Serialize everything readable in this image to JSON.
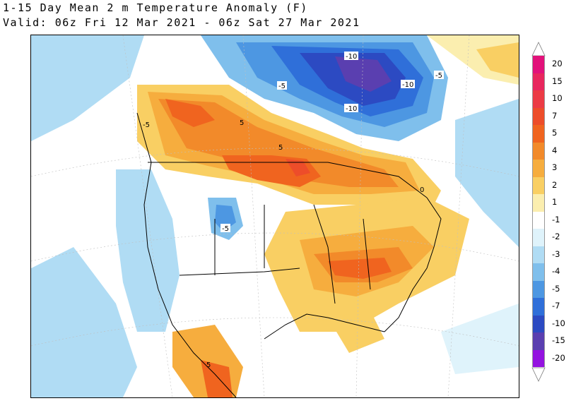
{
  "title": {
    "line1": "1-15 Day Mean 2 m Temperature Anomaly (F)",
    "line2": "Valid: 06z Fri 12 Mar 2021 - 06z Sat 27 Mar 2021"
  },
  "map": {
    "region": "North America",
    "variable": "2 m temperature anomaly",
    "units": "F",
    "contour_labels": [
      "-10",
      "-10",
      "-10",
      "-5",
      "-5",
      "5",
      "5",
      "-5",
      "-5",
      "5",
      "0"
    ]
  },
  "colorbar": {
    "levels": [
      {
        "label": "20",
        "color": "#e2117a"
      },
      {
        "label": "15",
        "color": "#e8265e"
      },
      {
        "label": "10",
        "color": "#ec3b45"
      },
      {
        "label": "7",
        "color": "#ed4d2a"
      },
      {
        "label": "5",
        "color": "#f0641f"
      },
      {
        "label": "4",
        "color": "#f28a2a"
      },
      {
        "label": "3",
        "color": "#f6ad3e"
      },
      {
        "label": "2",
        "color": "#f9cf63"
      },
      {
        "label": "1",
        "color": "#fbeeaf"
      },
      {
        "label": "-1",
        "color": "#ffffff"
      },
      {
        "label": "-2",
        "color": "#dff3fb"
      },
      {
        "label": "-3",
        "color": "#b0dcf4"
      },
      {
        "label": "-4",
        "color": "#7fbfec"
      },
      {
        "label": "-5",
        "color": "#4d97e2"
      },
      {
        "label": "-7",
        "color": "#2f6fd9"
      },
      {
        "label": "-10",
        "color": "#2c4ac2"
      },
      {
        "label": "-15",
        "color": "#5a3fb0"
      },
      {
        "label": "-20",
        "color": "#9412e0"
      }
    ],
    "low_cap_color": "#ffffff",
    "high_cap_color": "#ffffff"
  }
}
